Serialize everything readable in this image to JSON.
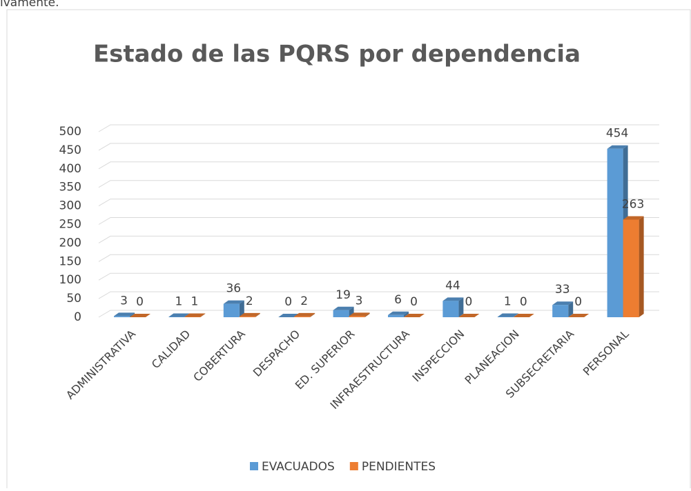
{
  "header_text": "ivamente.",
  "chart_data": {
    "type": "bar3d",
    "title": "Estado de las PQRS por dependencia",
    "categories": [
      "ADMINISTRATIVA",
      "CALIDAD",
      "COBERTURA",
      "DESPACHO",
      "ED. SUPERIOR",
      "INFRAESTRUCTURA",
      "INSPECCION",
      "PLANEACION",
      "SUBSECRETARIA",
      "PERSONAL"
    ],
    "series": [
      {
        "name": "EVACUADOS",
        "color": "#5b9bd5",
        "values": [
          3,
          1,
          36,
          0,
          19,
          6,
          44,
          1,
          33,
          454
        ]
      },
      {
        "name": "PENDIENTES",
        "color": "#ed7d31",
        "values": [
          0,
          1,
          2,
          2,
          3,
          0,
          0,
          0,
          0,
          263
        ]
      }
    ],
    "ylim": [
      0,
      500
    ],
    "yticks": [
      0,
      50,
      100,
      150,
      200,
      250,
      300,
      350,
      400,
      450,
      500
    ],
    "grid": true,
    "legend": "bottom"
  }
}
